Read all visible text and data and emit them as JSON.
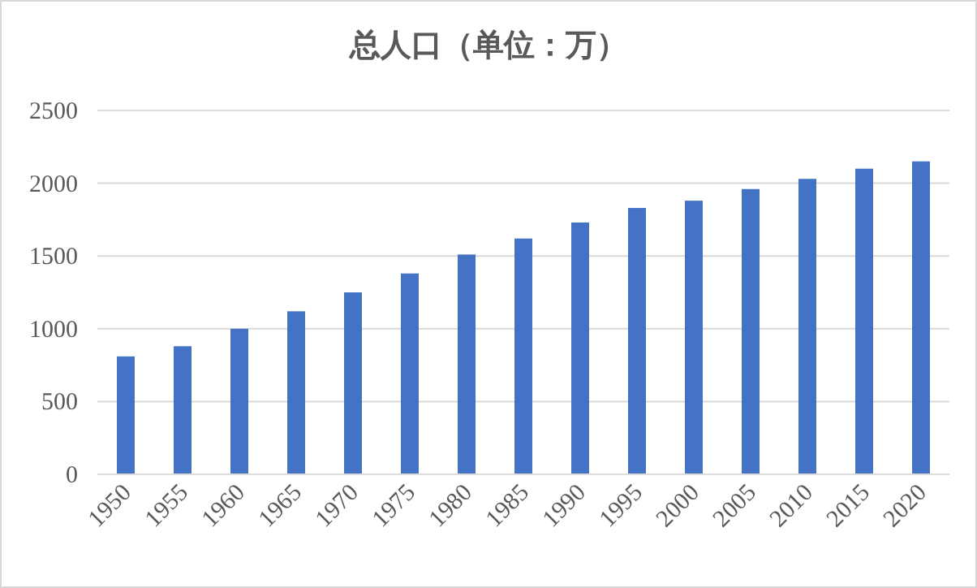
{
  "chart_data": {
    "type": "bar",
    "title": "总人口（单位：万）",
    "categories": [
      "1950",
      "1955",
      "1960",
      "1965",
      "1970",
      "1975",
      "1980",
      "1985",
      "1990",
      "1995",
      "2000",
      "2005",
      "2010",
      "2015",
      "2020"
    ],
    "values": [
      810,
      880,
      1000,
      1120,
      1250,
      1380,
      1510,
      1620,
      1730,
      1830,
      1880,
      1960,
      2030,
      2100,
      2150
    ],
    "color": "#4472c4",
    "ylim": [
      0,
      2500
    ],
    "yticks": [
      0,
      500,
      1000,
      1500,
      2000,
      2500
    ],
    "grid": "y"
  }
}
